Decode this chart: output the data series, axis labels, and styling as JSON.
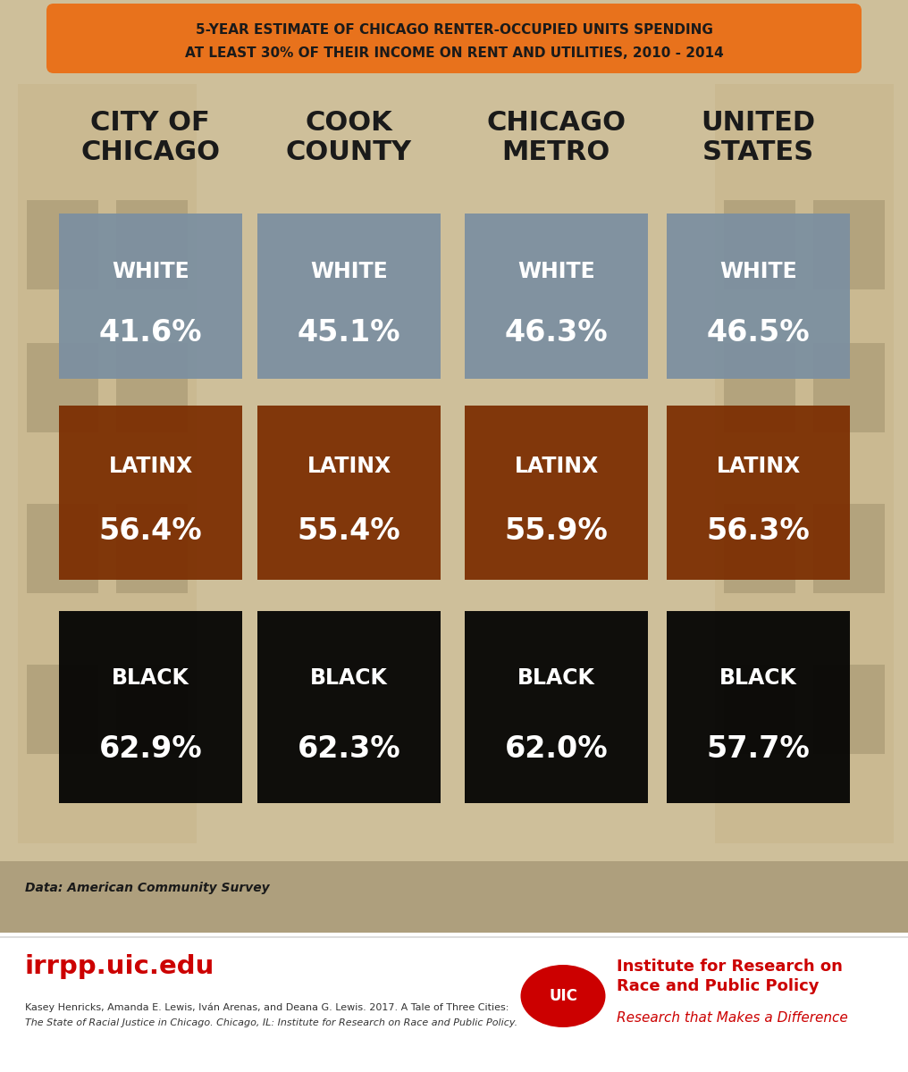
{
  "title_line1": "5-YEAR ESTIMATE OF CHICAGO RENTER-OCCUPIED UNITS SPENDING",
  "title_line2": "AT LEAST 30% OF THEIR INCOME ON RENT AND UTILITIES, 2010 - 2014",
  "title_bg_color": "#E8721C",
  "title_text_color": "#1a1a1a",
  "columns": [
    "CITY OF\nCHICAGO",
    "COOK\nCOUNTY",
    "CHICAGO\nMETRO",
    "UNITED\nSTATES"
  ],
  "col_header_color": "#1a1a1a",
  "rows": [
    {
      "label": "WHITE",
      "color": "#7B8FA1",
      "values": [
        "41.6%",
        "45.1%",
        "46.3%",
        "46.5%"
      ]
    },
    {
      "label": "LATINX",
      "color": "#7B2D00",
      "values": [
        "56.4%",
        "55.4%",
        "55.9%",
        "56.3%"
      ]
    },
    {
      "label": "BLACK",
      "color": "#000000",
      "values": [
        "62.9%",
        "62.3%",
        "62.0%",
        "57.7%"
      ]
    }
  ],
  "footer_left_url": "irrpp.uic.edu",
  "footer_left_url_color": "#cc0000",
  "footer_citation_line1": "Kasey Henricks, Amanda E. Lewis, Iván Arenas, and Deana G. Lewis. 2017. A Tale of Three Cities:",
  "footer_citation_line2": "The State of Racial Justice in Chicago. Chicago, IL: Institute for Research on Race and Public Policy.",
  "footer_right_title_line1": "Institute for Research on",
  "footer_right_title_line2": "Race and Public Policy",
  "footer_right_subtitle": "Research that Makes a Difference",
  "footer_right_color": "#cc0000",
  "data_source": "Data: American Community Survey",
  "box_text_color": "#ffffff",
  "label_fontsize": 17,
  "value_fontsize": 24,
  "col_header_fontsize": 22,
  "bg_tan": "#cebf9a",
  "bg_dark": "#b5a480"
}
